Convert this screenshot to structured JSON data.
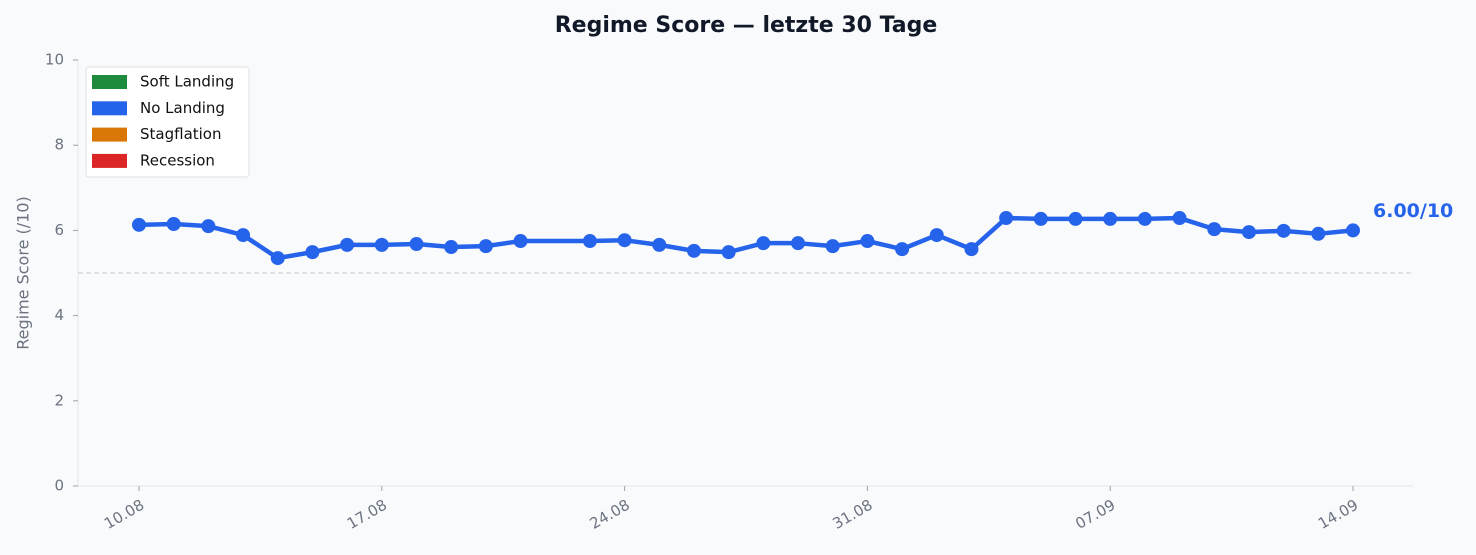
{
  "chart_data": {
    "type": "line",
    "title": "Regime Score — letzte 30 Tage",
    "y_label": "Regime Score (/10)",
    "x": [
      "10.08",
      "11.08",
      "12.08",
      "13.08",
      "14.08",
      "15.08",
      "16.08",
      "17.08",
      "18.08",
      "19.08",
      "20.08",
      "21.08",
      "23.08",
      "24.08",
      "25.08",
      "26.08",
      "27.08",
      "28.08",
      "29.08",
      "30.08",
      "31.08",
      "01.09",
      "02.09",
      "03.09",
      "04.09",
      "05.09",
      "06.09",
      "07.09",
      "08.09",
      "09.09",
      "10.09",
      "11.09",
      "12.09",
      "13.09",
      "14.09"
    ],
    "series": [
      {
        "name": "Regime Score",
        "color": "#2563eb",
        "values": [
          6.13,
          6.15,
          6.1,
          5.89,
          5.35,
          5.49,
          5.66,
          5.66,
          5.68,
          5.61,
          5.63,
          5.75,
          5.75,
          5.77,
          5.66,
          5.52,
          5.49,
          5.7,
          5.7,
          5.63,
          5.75,
          5.56,
          5.89,
          5.56,
          6.29,
          6.27,
          6.27,
          6.27,
          6.27,
          6.29,
          6.03,
          5.96,
          5.99,
          5.92,
          6.0
        ]
      }
    ],
    "annotation": "6.00/10",
    "hline": 5,
    "ylim": [
      0,
      10
    ],
    "yticks": [
      0,
      2,
      4,
      6,
      8,
      10
    ],
    "xticks": [
      "10.08",
      "17.08",
      "24.08",
      "31.08",
      "07.09",
      "14.09"
    ],
    "legend_position": "upper left",
    "legend": [
      {
        "name": "Soft Landing",
        "color": "#1e8a3e"
      },
      {
        "name": "No Landing",
        "color": "#2563eb"
      },
      {
        "name": "Stagflation",
        "color": "#d97706"
      },
      {
        "name": "Recession",
        "color": "#dc2626"
      }
    ]
  }
}
